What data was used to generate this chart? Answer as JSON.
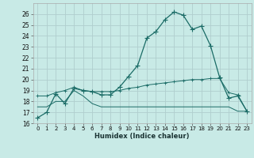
{
  "xlabel": "Humidex (Indice chaleur)",
  "bg_color": "#c8eae6",
  "grid_color": "#b0cece",
  "line_color": "#1a6b66",
  "xlim": [
    -0.5,
    23.5
  ],
  "ylim": [
    16,
    27
  ],
  "xticks": [
    0,
    1,
    2,
    3,
    4,
    5,
    6,
    7,
    8,
    9,
    10,
    11,
    12,
    13,
    14,
    15,
    16,
    17,
    18,
    19,
    20,
    21,
    22,
    23
  ],
  "yticks": [
    16,
    17,
    18,
    19,
    20,
    21,
    22,
    23,
    24,
    25,
    26
  ],
  "series1_x": [
    0,
    1,
    2,
    3,
    4,
    5,
    6,
    7,
    8,
    9,
    10,
    11,
    12,
    13,
    14,
    15,
    16,
    17,
    18,
    19,
    20,
    21,
    22,
    23
  ],
  "series1_y": [
    16.5,
    17.0,
    18.7,
    17.8,
    19.2,
    19.0,
    18.9,
    18.6,
    18.6,
    19.3,
    20.3,
    21.3,
    23.8,
    24.4,
    25.5,
    26.2,
    25.9,
    24.6,
    24.9,
    23.1,
    20.2,
    18.3,
    18.5,
    17.1
  ],
  "series2_x": [
    0,
    1,
    2,
    3,
    4,
    5,
    6,
    7,
    8,
    9,
    10,
    11,
    12,
    13,
    14,
    15,
    16,
    17,
    18,
    19,
    20,
    21,
    22,
    23
  ],
  "series2_y": [
    18.5,
    18.5,
    18.8,
    19.0,
    19.3,
    19.0,
    18.9,
    18.9,
    18.9,
    19.0,
    19.2,
    19.3,
    19.5,
    19.6,
    19.7,
    19.8,
    19.9,
    20.0,
    20.0,
    20.1,
    20.1,
    18.8,
    18.6,
    17.1
  ],
  "series3_x": [
    0,
    1,
    2,
    3,
    4,
    5,
    6,
    7,
    8,
    9,
    10,
    11,
    12,
    13,
    14,
    15,
    16,
    17,
    18,
    19,
    20,
    21,
    22,
    23
  ],
  "series3_y": [
    17.5,
    17.5,
    18.0,
    18.0,
    19.0,
    18.5,
    17.8,
    17.5,
    17.5,
    17.5,
    17.5,
    17.5,
    17.5,
    17.5,
    17.5,
    17.5,
    17.5,
    17.5,
    17.5,
    17.5,
    17.5,
    17.5,
    17.1,
    17.1
  ]
}
